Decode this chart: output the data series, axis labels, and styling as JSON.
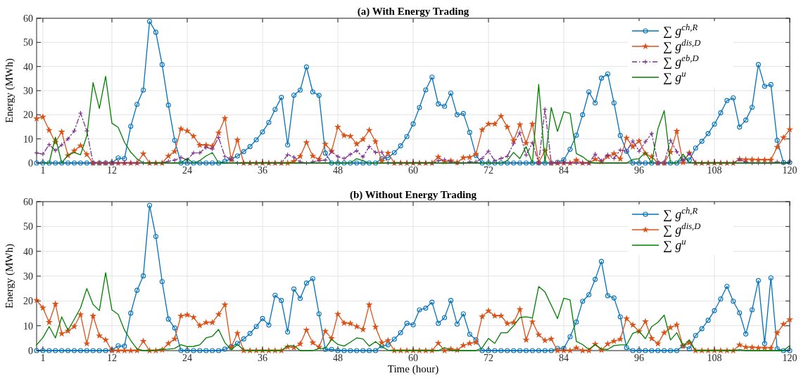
{
  "chart_data": [
    {
      "type": "line",
      "title": "(a) With Energy Trading",
      "ylabel": "Energy (MWh)",
      "x": [
        0,
        1,
        2,
        3,
        4,
        5,
        6,
        7,
        8,
        9,
        10,
        11,
        12,
        13,
        14,
        15,
        16,
        17,
        18,
        19,
        20,
        21,
        22,
        23,
        24,
        25,
        26,
        27,
        28,
        29,
        30,
        31,
        32,
        33,
        34,
        35,
        36,
        37,
        38,
        39,
        40,
        41,
        42,
        43,
        44,
        45,
        46,
        47,
        48,
        49,
        50,
        51,
        52,
        53,
        54,
        55,
        56,
        57,
        58,
        59,
        60,
        61,
        62,
        63,
        64,
        65,
        66,
        67,
        68,
        69,
        70,
        71,
        72,
        73,
        74,
        75,
        76,
        77,
        78,
        79,
        80,
        81,
        82,
        83,
        84,
        85,
        86,
        87,
        88,
        89,
        90,
        91,
        92,
        93,
        94,
        95,
        96,
        97,
        98,
        99,
        100,
        101,
        102,
        103,
        104,
        105,
        106,
        107,
        108,
        109,
        110,
        111,
        112,
        113,
        114,
        115,
        116,
        117,
        118,
        119,
        120
      ],
      "xlim": [
        0,
        120
      ],
      "xticks": [
        1,
        12,
        24,
        36,
        48,
        60,
        72,
        84,
        96,
        108,
        120
      ],
      "ylim": [
        0,
        60
      ],
      "yticks": [
        0,
        10,
        20,
        30,
        40,
        50,
        60
      ],
      "grid": true,
      "legend": "top right",
      "series": [
        {
          "name": "∑ g$^{ch,R}$",
          "color": "#0072bd",
          "marker": "circle",
          "line_style": "solid",
          "values": [
            0,
            0,
            0,
            0,
            0,
            0,
            0,
            0,
            0,
            0,
            0,
            0,
            0,
            2.1,
            1.8,
            15.2,
            24.3,
            30.2,
            58.7,
            54.2,
            40.8,
            24,
            9.4,
            0,
            0,
            0,
            0,
            0,
            0,
            0,
            0.7,
            1.8,
            2.9,
            4.7,
            6.8,
            9.6,
            12.9,
            16.8,
            22.2,
            27.2,
            7.5,
            28.1,
            30.2,
            39.8,
            29.5,
            28,
            4.1,
            0,
            0,
            0,
            0,
            0,
            0,
            0,
            0,
            1.7,
            2.2,
            4.3,
            7.1,
            11,
            16.2,
            23,
            30.3,
            35.6,
            24.5,
            23.5,
            29,
            20,
            20.5,
            12.7,
            3.1,
            0,
            0,
            0,
            0,
            0,
            0,
            0,
            0,
            0,
            0,
            0,
            0,
            0.3,
            1.3,
            5.7,
            11.5,
            20,
            29.5,
            24.9,
            35.2,
            36.9,
            24.9,
            11.4,
            4.9,
            0,
            0,
            0,
            0,
            0,
            0,
            0,
            0,
            1.7,
            1.2,
            6.2,
            9,
            12.2,
            16.1,
            20.8,
            25.9,
            27,
            14.9,
            17.8,
            23.1,
            40.8,
            31.8,
            32.5,
            9.4,
            0.2,
            0.2
          ]
        },
        {
          "name": "∑ g$^{dis,D}$",
          "color": "#d95319",
          "marker": "star",
          "line_style": "solid",
          "values": [
            18.4,
            19.1,
            13.6,
            8.6,
            12.9,
            3.1,
            5.1,
            7.2,
            3.5,
            0,
            0,
            0,
            0,
            0,
            0,
            0,
            0,
            3.8,
            0,
            0,
            0,
            2.9,
            4.8,
            14.2,
            13.3,
            11.1,
            7.4,
            7.4,
            7,
            12.5,
            18.5,
            1.4,
            9.6,
            0,
            0,
            0,
            0,
            0,
            0,
            0,
            0,
            0.7,
            2.8,
            8.5,
            2.9,
            1.5,
            7.8,
            4.9,
            14.9,
            11.4,
            11.1,
            7.9,
            9.8,
            13.6,
            8.9,
            0.7,
            4.1,
            0,
            0,
            0,
            0,
            0,
            0,
            0,
            2.5,
            0.5,
            0.9,
            0.2,
            2.2,
            2.4,
            3.7,
            13.8,
            16.2,
            16.2,
            19.4,
            14.9,
            9.3,
            15.9,
            8.2,
            16.2,
            0.2,
            5.1,
            0,
            0,
            0,
            0,
            1.2,
            0,
            0,
            1.6,
            0.5,
            2.7,
            3.9,
            1.7,
            10.4,
            6.8,
            9.1,
            3.9,
            2.6,
            0,
            0,
            4.5,
            13.2,
            0.2,
            4.2,
            0,
            0,
            0,
            0,
            0,
            0,
            0,
            1.6,
            1.4,
            1.4,
            1.3,
            1.3,
            1.3,
            6.6,
            10.5,
            13.9
          ]
        },
        {
          "name": "∑ g$^{eb,D}$",
          "color": "#7e2f8e",
          "marker": "cross",
          "line_style": "dashed",
          "values": [
            4.2,
            3.7,
            7.6,
            5.2,
            7.5,
            10,
            13.3,
            20.7,
            13.3,
            0,
            0,
            0,
            0,
            0,
            0,
            0,
            0,
            0,
            0,
            0,
            0,
            0.7,
            1.2,
            2.3,
            1.3,
            4.2,
            4.2,
            6.5,
            5.8,
            10.6,
            2.7,
            1.4,
            0,
            0,
            0,
            0,
            0,
            0,
            0,
            0,
            3.4,
            2.4,
            0.5,
            0,
            0.5,
            1,
            1.2,
            4.8,
            2.6,
            1.8,
            3.6,
            5.1,
            2.5,
            6.8,
            4.4,
            4.5,
            0,
            0,
            0,
            0,
            0,
            0,
            0,
            0,
            0.9,
            1.4,
            0.5,
            0,
            0,
            0.5,
            0.5,
            1.9,
            4.9,
            0.9,
            1.9,
            2.8,
            8.1,
            12.5,
            3.3,
            8.4,
            0,
            22.3,
            0,
            0,
            0,
            0,
            0,
            0,
            0,
            3.7,
            0.9,
            3.4,
            1.9,
            5.4,
            4.9,
            9.1,
            4.9,
            8.8,
            12.2,
            0,
            0,
            9.4,
            4.7,
            1,
            3.9,
            0,
            0,
            0,
            0,
            0,
            0,
            0,
            1.4,
            0.4,
            0,
            0,
            0,
            0,
            0.5,
            0,
            0.5
          ]
        },
        {
          "name": "∑ g$^{u}$",
          "color": "#008000",
          "marker": "none",
          "line_style": "solid",
          "values": [
            null,
            0,
            0,
            10.7,
            0,
            3.3,
            4.3,
            3.4,
            11.2,
            33.3,
            22.6,
            35.9,
            16.5,
            14.8,
            8.6,
            4.5,
            1.7,
            0,
            0,
            0,
            0,
            0,
            0,
            0,
            1.9,
            0,
            1,
            2.9,
            4.3,
            0,
            0,
            0,
            0,
            0,
            0,
            0,
            0,
            0,
            0,
            0,
            0,
            0,
            0,
            0,
            0,
            0,
            0,
            0,
            0,
            0,
            0,
            1.8,
            1,
            0,
            0,
            0,
            0,
            0,
            0,
            0,
            0,
            0,
            0,
            0,
            0,
            0,
            0,
            0,
            0,
            0,
            0,
            0,
            0,
            0,
            0,
            1,
            4.4,
            1.8,
            6.8,
            0,
            32.6,
            0,
            23,
            13.1,
            21.2,
            20.6,
            3.9,
            2.6,
            0.5,
            0,
            0,
            0,
            0,
            0,
            0,
            1.5,
            1.8,
            4.4,
            0,
            14.2,
            21.7,
            0,
            0,
            3.7,
            0.2,
            0,
            0,
            0,
            0,
            0,
            0,
            0,
            0,
            0,
            0,
            0,
            0,
            0,
            0,
            0,
            0
          ]
        }
      ]
    },
    {
      "type": "line",
      "title": "(b) Without Energy Trading",
      "xlabel": "Time (hour)",
      "ylabel": "Energy (MWh)",
      "x": [
        0,
        1,
        2,
        3,
        4,
        5,
        6,
        7,
        8,
        9,
        10,
        11,
        12,
        13,
        14,
        15,
        16,
        17,
        18,
        19,
        20,
        21,
        22,
        23,
        24,
        25,
        26,
        27,
        28,
        29,
        30,
        31,
        32,
        33,
        34,
        35,
        36,
        37,
        38,
        39,
        40,
        41,
        42,
        43,
        44,
        45,
        46,
        47,
        48,
        49,
        50,
        51,
        52,
        53,
        54,
        55,
        56,
        57,
        58,
        59,
        60,
        61,
        62,
        63,
        64,
        65,
        66,
        67,
        68,
        69,
        70,
        71,
        72,
        73,
        74,
        75,
        76,
        77,
        78,
        79,
        80,
        81,
        82,
        83,
        84,
        85,
        86,
        87,
        88,
        89,
        90,
        91,
        92,
        93,
        94,
        95,
        96,
        97,
        98,
        99,
        100,
        101,
        102,
        103,
        104,
        105,
        106,
        107,
        108,
        109,
        110,
        111,
        112,
        113,
        114,
        115,
        116,
        117,
        118,
        119,
        120
      ],
      "xlim": [
        0,
        120
      ],
      "xticks": [
        1,
        12,
        24,
        36,
        48,
        60,
        72,
        84,
        96,
        108,
        120
      ],
      "ylim": [
        0,
        60
      ],
      "yticks": [
        0,
        10,
        20,
        30,
        40,
        50,
        60
      ],
      "grid": true,
      "legend": "top right",
      "series": [
        {
          "name": "∑ g$^{ch,R}$",
          "color": "#0072bd",
          "marker": "circle",
          "line_style": "solid",
          "values": [
            0,
            0,
            0,
            0,
            0,
            0,
            0,
            0,
            0,
            0,
            0,
            0,
            0.2,
            1.9,
            1.8,
            15.1,
            24.3,
            30.1,
            58.5,
            46,
            27.8,
            12.7,
            9.1,
            0,
            0,
            0,
            0,
            0,
            0,
            0,
            0.6,
            1.6,
            2.9,
            4.7,
            6.9,
            9.7,
            12.9,
            10.3,
            22.3,
            20.2,
            7.5,
            24.8,
            21,
            27.2,
            29,
            14.8,
            0.5,
            0.5,
            0,
            0,
            0,
            0,
            0,
            0,
            0,
            1.9,
            2.3,
            4.6,
            7.2,
            11,
            10.4,
            16.4,
            17.1,
            19.5,
            11,
            13.3,
            20.2,
            10.7,
            14.8,
            6.6,
            4.4,
            0,
            0,
            0,
            0,
            0,
            0,
            0,
            0,
            0,
            0,
            0,
            0,
            0.9,
            0.9,
            5.6,
            11.5,
            19.9,
            22.5,
            28.7,
            35.9,
            22.1,
            21.2,
            13.6,
            1.2,
            0,
            0,
            0,
            0,
            0,
            0,
            0,
            0,
            1.9,
            0.7,
            6.1,
            8.8,
            12.2,
            16.1,
            20.8,
            25.9,
            19.9,
            15.2,
            6.7,
            16.4,
            28.2,
            2.8,
            29.3,
            0.7,
            0,
            0
          ]
        },
        {
          "name": "∑ g$^{dis,D}$",
          "color": "#d95319",
          "marker": "star",
          "line_style": "solid",
          "values": [
            20.3,
            17.2,
            11.4,
            18.8,
            6.8,
            7.9,
            9.7,
            14.5,
            2.8,
            14,
            6,
            4.3,
            0,
            0,
            0,
            0,
            0,
            3.8,
            0,
            0,
            0.3,
            2.9,
            4.7,
            14,
            14.4,
            13.4,
            10.1,
            11.3,
            11.3,
            14.6,
            18.5,
            1.4,
            7,
            0,
            0,
            0,
            0,
            0,
            0,
            0,
            1.5,
            1.2,
            2.7,
            8.3,
            3.2,
            1.4,
            7.8,
            4.9,
            14.7,
            11.1,
            10.9,
            9.7,
            8.5,
            18.5,
            9.5,
            3.2,
            4.1,
            0,
            0,
            0,
            0,
            0,
            0,
            0,
            3,
            0,
            0.6,
            0.2,
            2.1,
            2.9,
            3.3,
            13.7,
            16,
            14,
            14,
            10.9,
            11.3,
            16.6,
            4.3,
            11.6,
            6.4,
            4.1,
            4.7,
            0,
            0,
            0,
            1.1,
            0,
            0,
            2.6,
            0.2,
            2.7,
            3.8,
            4.6,
            12.9,
            10.3,
            7.7,
            11.7,
            4.9,
            2.8,
            7.2,
            9.3,
            10.4,
            1.8,
            3.2,
            0,
            0,
            0,
            0,
            0,
            0,
            0,
            2.3,
            1.4,
            1.3,
            1.1,
            1.1,
            1,
            7.1,
            10.6,
            12.5
          ]
        },
        {
          "name": "∑ g$^{u}$",
          "color": "#008000",
          "marker": "none",
          "line_style": "solid",
          "values": [
            2.3,
            5.2,
            9.7,
            5.1,
            13.6,
            8.2,
            12.6,
            17.2,
            25,
            18.6,
            16.1,
            31.4,
            16.4,
            14.6,
            8.3,
            4.1,
            0.7,
            0,
            0,
            0.2,
            0.5,
            0.6,
            0.9,
            2.4,
            1.6,
            1.7,
            2.3,
            5.1,
            5.8,
            8.5,
            3.2,
            0.3,
            2.5,
            0.2,
            0,
            0,
            0,
            0,
            0,
            0,
            1.9,
            2,
            0,
            0,
            0,
            0.9,
            0.9,
            4.5,
            2.5,
            1.8,
            3.4,
            5.1,
            4.7,
            1.8,
            3.6,
            1.6,
            0.2,
            0,
            0,
            0,
            0,
            0,
            0,
            0,
            0,
            1.2,
            0.2,
            0,
            0,
            0,
            0,
            1.2,
            4.9,
            2.9,
            7.2,
            7.2,
            10,
            13.3,
            13.6,
            13.1,
            25.8,
            23.6,
            18.3,
            12.9,
            21.1,
            20.4,
            3.7,
            2.4,
            0.5,
            2.5,
            0.6,
            0.5,
            2,
            2.3,
            2.3,
            7,
            7.8,
            4.8,
            9.6,
            11.4,
            14.3,
            4.3,
            7.2,
            1.8,
            4.3,
            0,
            0,
            0,
            0,
            0,
            0,
            0,
            0.4,
            0,
            0,
            0,
            0,
            0,
            0,
            0,
            2
          ]
        }
      ]
    }
  ]
}
